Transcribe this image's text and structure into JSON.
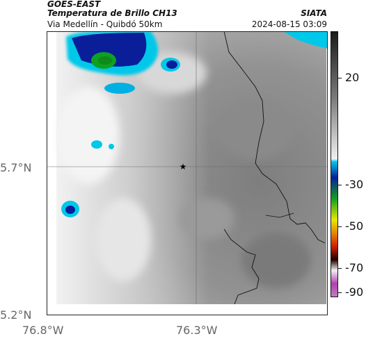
{
  "header": {
    "satellite": "GOES-EAST",
    "product": "Temperatura de Brillo CH13",
    "route": "Via Medellín - Quibdó 50km",
    "org": "SIATA",
    "timestamp": "2024-08-15 03:09"
  },
  "map": {
    "lat_ticks": [
      "5.7°N",
      "5.2°N"
    ],
    "lon_ticks": [
      "76.8°W",
      "76.3°W"
    ],
    "marker": "star"
  },
  "colorbar": {
    "labels": [
      "20",
      "-30",
      "-50",
      "-70",
      "-90"
    ],
    "colors": {
      "warm_top": "#1a1a1a",
      "gray_mid": "#9a9a9a",
      "light": "#f0f0f0",
      "cyan": "#00c8e8",
      "blue": "#0a1e9a",
      "green": "#10a020",
      "yellow": "#e8e800",
      "red": "#d02000",
      "dark": "#200000",
      "magenta": "#b040b0"
    }
  }
}
